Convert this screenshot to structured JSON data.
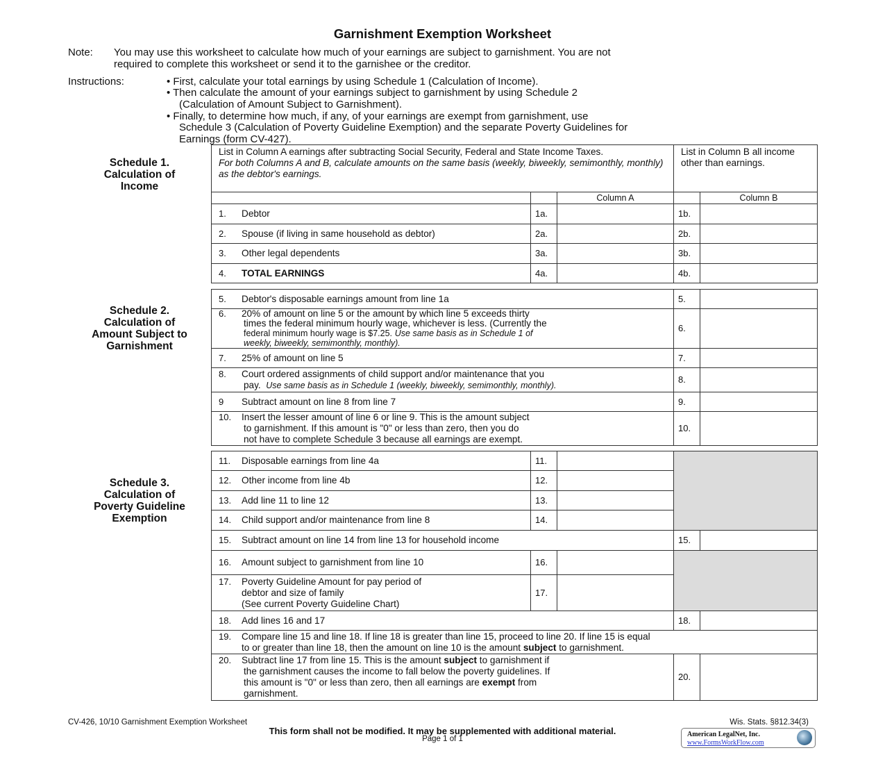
{
  "title": "Garnishment Exemption Worksheet",
  "note": {
    "label": "Note:",
    "line1": "You may use this worksheet to calculate how much of your earnings are subject to garnishment.  You are not",
    "line2": "required to complete this worksheet or send it to the garnishee or the creditor."
  },
  "instructions": {
    "label": "Instructions:",
    "b1": "•  First, calculate your total earnings by using Schedule 1 (Calculation of Income).",
    "b2a": "•  Then calculate the amount of your earnings subject to garnishment by using Schedule 2",
    "b2b": "(Calculation of Amount Subject to Garnishment).",
    "b3a": "•  Finally, to determine how much, if any, of your earnings are exempt from garnishment, use",
    "b3b": "Schedule 3 (Calculation of Poverty Guideline Exemption) and the separate Poverty Guidelines for",
    "b3c": "Earnings (form CV-427)."
  },
  "schedule1": {
    "heading": [
      "Schedule 1.",
      "Calculation of",
      "Income"
    ],
    "intro_a": "List in Column A earnings after subtracting Social Security, Federal and State Income Taxes.",
    "intro_a_italic": "For both Columns A and B, calculate amounts on the same basis (weekly, biweekly, semimonthly, monthly) as the debtor's earnings.",
    "intro_b": "List in Column B all income other than earnings.",
    "col_a": "Column A",
    "col_b": "Column B",
    "rows": [
      {
        "num": "1.",
        "label": "Debtor",
        "code_a": "1a.",
        "code_b": "1b."
      },
      {
        "num": "2.",
        "label": "Spouse (if living in same household as debtor)",
        "code_a": "2a.",
        "code_b": "2b."
      },
      {
        "num": "3.",
        "label": "Other legal dependents",
        "code_a": "3a.",
        "code_b": "3b."
      },
      {
        "num": "4.",
        "label": "TOTAL EARNINGS",
        "code_a": "4a.",
        "code_b": "4b."
      }
    ]
  },
  "schedule2": {
    "heading": [
      "Schedule 2.",
      "Calculation of",
      "Amount Subject to",
      "Garnishment"
    ],
    "r5": {
      "num": "5.",
      "text": "Debtor's disposable earnings amount from line 1a",
      "code": "5."
    },
    "r6": {
      "num": "6.",
      "text1": "20% of amount on line 5 or the amount by which line 5 exceeds thirty",
      "text2": "times the federal minimum hourly wage, whichever is less.  (Currently the",
      "text3": "federal minimum hourly wage is $7.25.",
      "text3_italic": "Use same basis as in Schedule 1 of",
      "text4_italic": "weekly, biweekly, semimonthly, monthly).",
      "code": "6."
    },
    "r7": {
      "num": "7.",
      "text": "25% of amount on line 5",
      "code": "7."
    },
    "r8": {
      "num": "8.",
      "text1": "Court ordered assignments of child support and/or maintenance that you",
      "text2": "pay.",
      "text2_italic": "Use same basis as in Schedule 1 (weekly, biweekly, semimonthly, monthly).",
      "code": "8."
    },
    "r9": {
      "num": "9",
      "text": "Subtract amount on line 8 from line 7",
      "code": "9."
    },
    "r10": {
      "num": "10.",
      "text1": "Insert the lesser amount of line 6 or line 9. This is the amount subject",
      "text2": "to garnishment.  If this amount is \"0\" or less than zero, then you do",
      "text3": "not have to complete Schedule 3 because all earnings are exempt.",
      "code": "10."
    }
  },
  "schedule3": {
    "heading": [
      "Schedule 3.",
      "Calculation of",
      "Poverty Guideline",
      "Exemption"
    ],
    "r11": {
      "num": "11.",
      "text": "Disposable earnings from line 4a",
      "code": "11."
    },
    "r12": {
      "num": "12.",
      "text": "Other income from line 4b",
      "code": "12."
    },
    "r13": {
      "num": "13.",
      "text": "Add line 11 to line 12",
      "code": "13."
    },
    "r14": {
      "num": "14.",
      "text": "Child support and/or maintenance from line 8",
      "code": "14."
    },
    "r15": {
      "num": "15.",
      "text": "Subtract amount on line 14 from line 13 for household income",
      "code": "15."
    },
    "r16": {
      "num": "16.",
      "text": "Amount subject to garnishment from line 10",
      "code": "16."
    },
    "r17": {
      "num": "17.",
      "text1": "Poverty Guideline Amount for pay period of",
      "text2": "debtor and size of family",
      "text3": "(See current Poverty Guideline Chart)",
      "code": "17."
    },
    "r18": {
      "num": "18.",
      "text": "Add lines 16 and 17",
      "code": "18."
    },
    "r19": {
      "num": "19.",
      "text1": "Compare line 15 and line 18.  If line 18 is greater than line 15, proceed to line 20.  If line 15 is equal",
      "text2a": "to or greater than line 18, then  the amount on line 10 is the amount",
      "text2b": "subject",
      "text2c": "to garnishment."
    },
    "r20": {
      "num": "20.",
      "t1a": "Subtract line 17 from line 15.  This is the amount",
      "t1b": "subject",
      "t1c": "to garnishment if",
      "t2": "the garnishment causes the income to fall below the poverty guidelines.  If",
      "t3a": "this amount is \"0\" or less than zero, then all earnings are",
      "t3b": "exempt",
      "t3c": "from",
      "t4": "garnishment.",
      "code": "20."
    }
  },
  "footer": {
    "form_id": "CV-426, 10/10 Garnishment Exemption Worksheet",
    "statute": "Wis. Stats. §812.34(3)",
    "notice": "This form shall not be modified. It may be supplemented with additional material.",
    "page": "Page 1 of 1",
    "logo_name": "American LegalNet, Inc.",
    "logo_url": "www.FormsWorkFlow.com"
  },
  "colors": {
    "shade": "#dcdcdc",
    "border": "#333333"
  }
}
